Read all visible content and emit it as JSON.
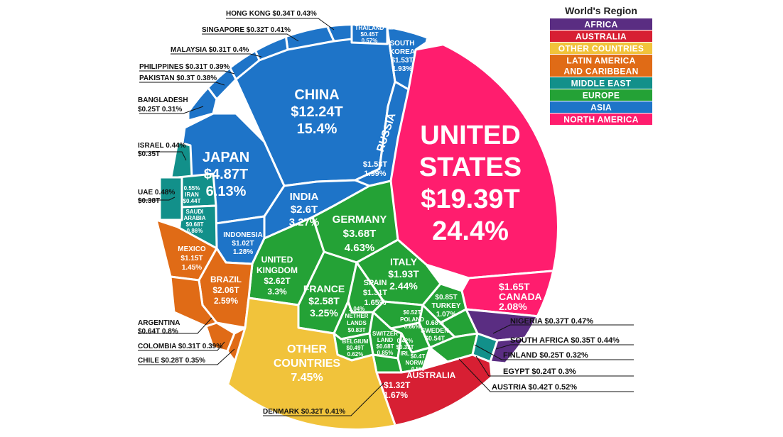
{
  "chart_data": {
    "type": "voronoi-treemap",
    "value_unit": "USD trillions (GDP)",
    "legend": {
      "title": "World's Region",
      "placement": "top-right",
      "entries": [
        {
          "name": "AFRICA",
          "color": "#5a2d82"
        },
        {
          "name": "AUSTRALIA",
          "color": "#d71f33"
        },
        {
          "name": "OTHER COUNTRIES",
          "color": "#f1c33b"
        },
        {
          "name": "LATIN AMERICA AND CARIBBEAN",
          "lines": [
            "LATIN AMERICA",
            "AND CARIBBEAN"
          ],
          "color": "#e06b16"
        },
        {
          "name": "MIDDLE EAST",
          "color": "#12908a"
        },
        {
          "name": "EUROPE",
          "color": "#24a236"
        },
        {
          "name": "ASIA",
          "color": "#1e74c8"
        },
        {
          "name": "NORTH AMERICA",
          "color": "#ff1d6e"
        }
      ]
    },
    "cells": [
      {
        "name": "UNITED STATES",
        "value": "$19.39T",
        "share": "24.4%",
        "region": "NORTH AMERICA",
        "lines": [
          "UNITED",
          "STATES",
          "$19.39T",
          "24.4%"
        ]
      },
      {
        "name": "CANADA",
        "value": "$1.65T",
        "share": "2.08%",
        "region": "NORTH AMERICA",
        "lines": [
          "$1.65T",
          "CANADA",
          "2.08%"
        ]
      },
      {
        "name": "CHINA",
        "value": "$12.24T",
        "share": "15.4%",
        "region": "ASIA",
        "lines": [
          "CHINA",
          "$12.24T",
          "15.4%"
        ]
      },
      {
        "name": "JAPAN",
        "value": "$4.87T",
        "share": "6.13%",
        "region": "ASIA",
        "lines": [
          "JAPAN",
          "$4.87T",
          "6.13%"
        ]
      },
      {
        "name": "INDIA",
        "value": "$2.6T",
        "share": "3.27%",
        "region": "ASIA",
        "lines": [
          "INDIA",
          "$2.6T",
          "3.27%"
        ]
      },
      {
        "name": "RUSSIA",
        "value": "$1.58T",
        "share": "1.99%",
        "region": "ASIA",
        "lines": [
          "RUSSIA",
          "$1.58T",
          "1.99%"
        ]
      },
      {
        "name": "SOUTH KOREA",
        "value": "$1.53T",
        "share": "1.93%",
        "region": "ASIA",
        "lines": [
          "SOUTH",
          "KOREA",
          "$1.53T",
          "1.93%"
        ]
      },
      {
        "name": "INDONESIA",
        "value": "$1.02T",
        "share": "1.28%",
        "region": "ASIA",
        "lines": [
          "INDONESIA",
          "$1.02T",
          "1.28%"
        ]
      },
      {
        "name": "THAILAND",
        "value": "$0.45T",
        "share": "0.57%",
        "region": "ASIA",
        "lines": [
          "THAILAND",
          "$0.45T",
          "0.57%"
        ]
      },
      {
        "name": "HONG KONG",
        "value": "$0.34T",
        "share": "0.43%",
        "region": "ASIA",
        "lines": [
          "HONG KONG $0.34T  0.43%"
        ]
      },
      {
        "name": "SINGAPORE",
        "value": "$0.32T",
        "share": "0.41%",
        "region": "ASIA",
        "lines": [
          "SINGAPORE $0.32T  0.41%"
        ]
      },
      {
        "name": "MALAYSIA",
        "value": "$0.31T",
        "share": "0.4%",
        "region": "ASIA",
        "lines": [
          "MALAYSIA  $0.31T   0.4%"
        ]
      },
      {
        "name": "PHILIPPINES",
        "value": "$0.31T",
        "share": "0.39%",
        "region": "ASIA",
        "lines": [
          "PHILIPPINES $0.31T  0.39%"
        ]
      },
      {
        "name": "PAKISTAN",
        "value": "$0.3T",
        "share": "0.38%",
        "region": "ASIA",
        "lines": [
          "PAKISTAN  $0.3T  0.38%"
        ]
      },
      {
        "name": "BANGLADESH",
        "value": "$0.25T",
        "share": "0.31%",
        "region": "ASIA",
        "lines": [
          "BANGLADESH",
          "$0.25T  0.31%"
        ]
      },
      {
        "name": "GERMANY",
        "value": "$3.68T",
        "share": "4.63%",
        "region": "EUROPE",
        "lines": [
          "GERMANY",
          "$3.68T",
          "4.63%"
        ]
      },
      {
        "name": "UNITED KINGDOM",
        "value": "$2.62T",
        "share": "3.3%",
        "region": "EUROPE",
        "lines": [
          "UNITED",
          "KINGDOM",
          "$2.62T",
          "3.3%"
        ]
      },
      {
        "name": "FRANCE",
        "value": "$2.58T",
        "share": "3.25%",
        "region": "EUROPE",
        "lines": [
          "FRANCE",
          "$2.58T",
          "3.25%"
        ]
      },
      {
        "name": "ITALY",
        "value": "$1.93T",
        "share": "2.44%",
        "region": "EUROPE",
        "lines": [
          "ITALY",
          "$1.93T",
          "2.44%"
        ]
      },
      {
        "name": "SPAIN",
        "value": "$1.31T",
        "share": "1.65%",
        "region": "EUROPE",
        "lines": [
          "SPAIN",
          "$1.31T",
          "1.65%"
        ]
      },
      {
        "name": "TURKEY",
        "value": "$0.85T",
        "share": "1.07%",
        "region": "EUROPE",
        "lines": [
          "$0.85T",
          "TURKEY",
          "1.07%"
        ]
      },
      {
        "name": "NETHERLANDS",
        "value": "$0.83T",
        "share": "1.04%",
        "region": "EUROPE",
        "lines": [
          "1.04%",
          "NETHER",
          "LANDS",
          "$0.83T"
        ]
      },
      {
        "name": "POLAND",
        "value": "$0.52T",
        "share": "0.66%",
        "region": "EUROPE",
        "lines": [
          "$0.52T",
          "POLAND",
          "0.66%"
        ]
      },
      {
        "name": "SWEDEN",
        "value": "$0.54T",
        "share": "0.68%",
        "region": "EUROPE",
        "lines": [
          "0.68%",
          "SWEDEN",
          "$0.54T"
        ]
      },
      {
        "name": "SWITZERLAND",
        "value": "$0.68T",
        "share": "0.85%",
        "region": "EUROPE",
        "lines": [
          "SWITZER",
          "LAND",
          "$0.68T",
          "0.85%"
        ]
      },
      {
        "name": "BELGIUM",
        "value": "$0.49T",
        "share": "0.62%",
        "region": "EUROPE",
        "lines": [
          "BELGIUM",
          "$0.49T",
          "0.62%"
        ]
      },
      {
        "name": "IRELAND",
        "value": "$0.33T",
        "share": "0.42%",
        "region": "EUROPE",
        "lines": [
          "0.42%",
          "$0.33T",
          "IRL"
        ]
      },
      {
        "name": "NORWAY",
        "value": "$0.4T",
        "share": "0.5%",
        "region": "EUROPE",
        "lines": [
          "$0.4T",
          "NORWAY",
          "0.5%"
        ]
      },
      {
        "name": "FINLAND",
        "value": "$0.25T",
        "share": "0.32%",
        "region": "EUROPE",
        "lines": [
          "FINLAND $0.25T  0.32%"
        ]
      },
      {
        "name": "AUSTRIA",
        "value": "$0.42T",
        "share": "0.52%",
        "region": "EUROPE",
        "lines": [
          "AUSTRIA $0.42T  0.52%"
        ]
      },
      {
        "name": "DENMARK",
        "value": "$0.32T",
        "share": "0.41%",
        "region": "EUROPE",
        "lines": [
          "DENMARK $0.32T 0.41%"
        ]
      },
      {
        "name": "ISRAEL",
        "value": "$0.35T",
        "share": "0.44%",
        "region": "MIDDLE EAST",
        "lines": [
          "ISRAEL 0.44%",
          "$0.35T"
        ]
      },
      {
        "name": "IRAN",
        "value": "$0.44T",
        "share": "0.55%",
        "region": "MIDDLE EAST",
        "lines": [
          "0.55%",
          "IRAN",
          "$0.44T"
        ]
      },
      {
        "name": "SAUDI ARABIA",
        "value": "$0.68T",
        "share": "0.86%",
        "region": "MIDDLE EAST",
        "lines": [
          "SAUDI",
          "ARABIA",
          "$0.68T",
          "0.86%"
        ]
      },
      {
        "name": "UAE",
        "value": "$0.38T",
        "share": "0.48%",
        "region": "MIDDLE EAST",
        "lines": [
          "UAE  0.48%",
          "$0.38T"
        ]
      },
      {
        "name": "EGYPT",
        "value": "$0.24T",
        "share": "0.3%",
        "region": "MIDDLE EAST",
        "lines": [
          "EGYPT $0.24T  0.3%"
        ]
      },
      {
        "name": "BRAZIL",
        "value": "$2.06T",
        "share": "2.59%",
        "region": "LATIN AMERICA AND CARIBBEAN",
        "lines": [
          "BRAZIL",
          "$2.06T",
          "2.59%"
        ]
      },
      {
        "name": "MEXICO",
        "value": "$1.15T",
        "share": "1.45%",
        "region": "LATIN AMERICA AND CARIBBEAN",
        "lines": [
          "MEXICO",
          "$1.15T",
          "1.45%"
        ]
      },
      {
        "name": "ARGENTINA",
        "value": "$0.64T",
        "share": "0.8%",
        "region": "LATIN AMERICA AND CARIBBEAN",
        "lines": [
          "ARGENTINA",
          "$0.64T  0.8%"
        ]
      },
      {
        "name": "COLOMBIA",
        "value": "$0.31T",
        "share": "0.39%",
        "region": "LATIN AMERICA AND CARIBBEAN",
        "lines": [
          "COLOMBIA $0.31T 0.39%"
        ]
      },
      {
        "name": "CHILE",
        "value": "$0.28T",
        "share": "0.35%",
        "region": "LATIN AMERICA AND CARIBBEAN",
        "lines": [
          "CHILE  $0.28T  0.35%"
        ]
      },
      {
        "name": "OTHER COUNTRIES",
        "value": "",
        "share": "7.45%",
        "region": "OTHER COUNTRIES",
        "lines": [
          "OTHER",
          "COUNTRIES",
          "7.45%"
        ]
      },
      {
        "name": "AUSTRALIA",
        "value": "$1.32T",
        "share": "1.67%",
        "region": "AUSTRALIA",
        "lines": [
          "AUSTRALIA",
          "$1.32T",
          "1.67%"
        ]
      },
      {
        "name": "NIGERIA",
        "value": "$0.37T",
        "share": "0.47%",
        "region": "AFRICA",
        "lines": [
          "NIGERIA $0.37T 0.47%"
        ]
      },
      {
        "name": "SOUTH AFRICA",
        "value": "$0.35T",
        "share": "0.44%",
        "region": "AFRICA",
        "lines": [
          "SOUTH AFRICA $0.35T  0.44%"
        ]
      }
    ]
  }
}
